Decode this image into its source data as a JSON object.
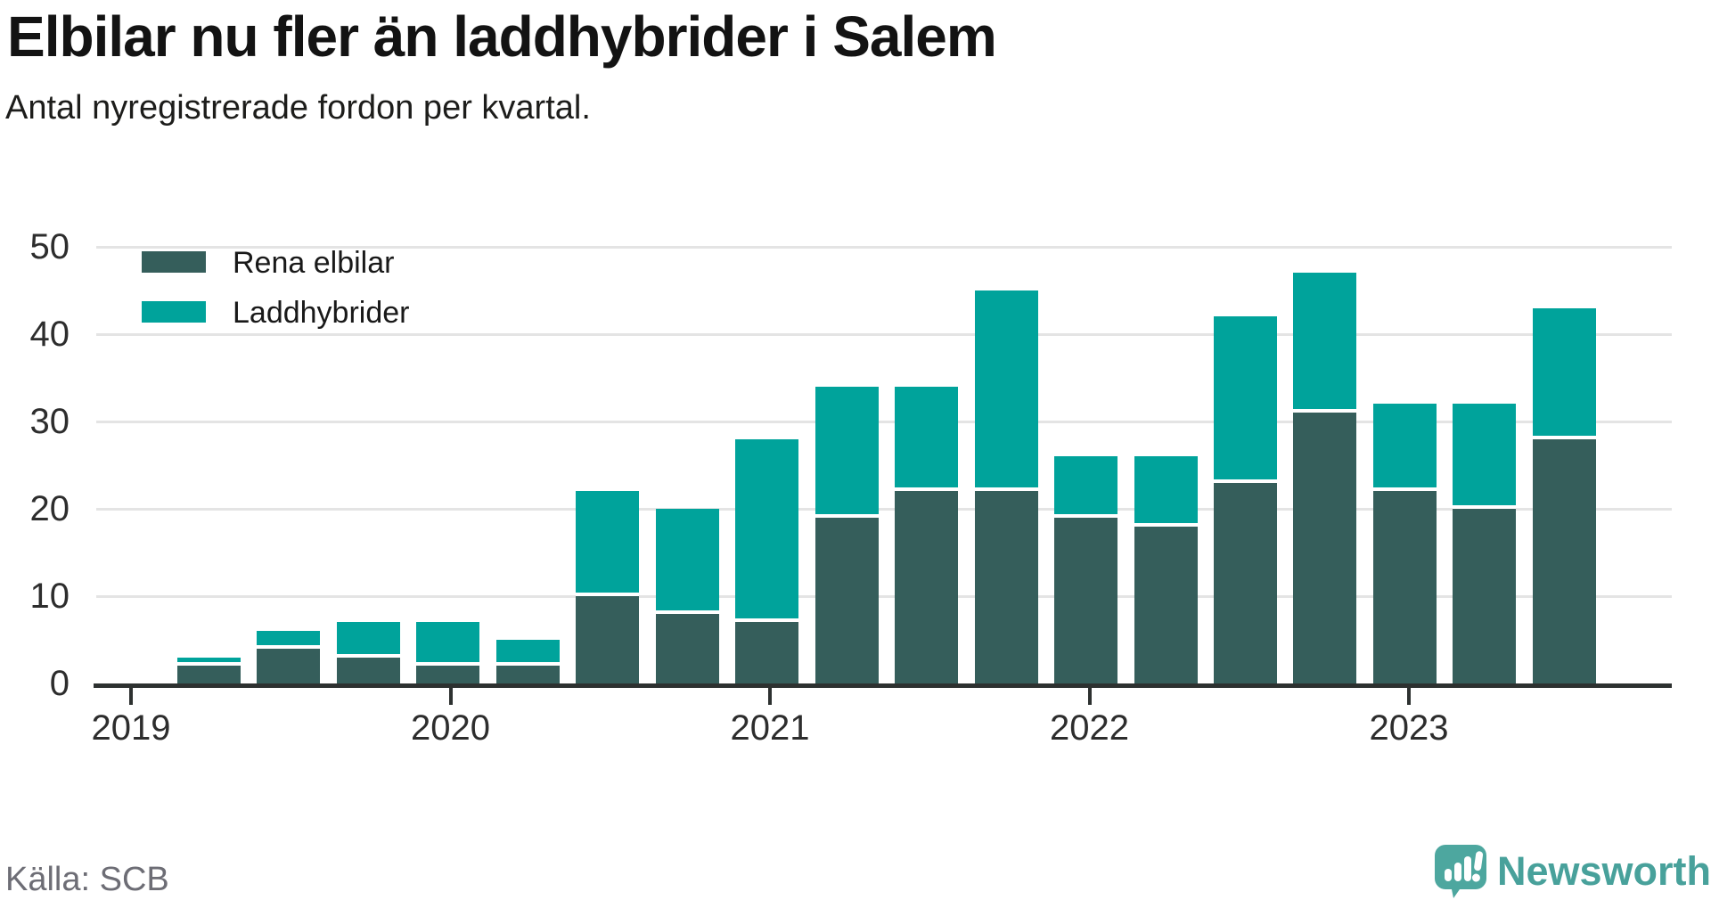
{
  "title": "Elbilar nu fler än laddhybrider i Salem",
  "subtitle": "Antal nyregistrerade fordon per kvartal.",
  "source": "Källa: SCB",
  "logo": {
    "text": "Newsworthy",
    "icon": "speech-bubble-bar-chart-icon",
    "color": "#48a19b",
    "icon_color": "#4da79f"
  },
  "legend": {
    "items": [
      {
        "label": "Rena elbilar",
        "color": "#355e5b"
      },
      {
        "label": "Laddhybrider",
        "color": "#00a39b"
      }
    ]
  },
  "colors": {
    "elbilar": "#355e5b",
    "laddhybrider": "#00a39b",
    "gridline": "#e4e4e4",
    "axis": "#2d3130",
    "tick_text": "#2d2d2d",
    "title_text": "#131313",
    "source_text": "#6d6d75"
  },
  "chart_data": {
    "type": "bar",
    "stacked": true,
    "title": "Elbilar nu fler än laddhybrider i Salem",
    "subtitle": "Antal nyregistrerade fordon per kvartal.",
    "categories": [
      "2019 Q1",
      "2019 Q2",
      "2019 Q3",
      "2019 Q4",
      "2020 Q1",
      "2020 Q2",
      "2020 Q3",
      "2020 Q4",
      "2021 Q1",
      "2021 Q2",
      "2021 Q3",
      "2021 Q4",
      "2022 Q1",
      "2022 Q2",
      "2022 Q3",
      "2022 Q4",
      "2023 Q1",
      "2023 Q2"
    ],
    "series": [
      {
        "name": "Rena elbilar",
        "color": "#355e5b",
        "values": [
          2,
          4,
          3,
          2,
          2,
          10,
          8,
          7,
          19,
          22,
          22,
          19,
          18,
          23,
          31,
          22,
          20,
          28
        ]
      },
      {
        "name": "Laddhybrider",
        "color": "#00a39b",
        "values": [
          1,
          2,
          4,
          5,
          3,
          12,
          12,
          21,
          15,
          12,
          23,
          7,
          8,
          19,
          16,
          10,
          12,
          15
        ]
      }
    ],
    "totals": [
      3,
      6,
      7,
      7,
      5,
      22,
      20,
      28,
      34,
      34,
      45,
      26,
      26,
      42,
      47,
      32,
      32,
      43
    ],
    "x_year_ticks": [
      "2019",
      "2020",
      "2021",
      "2022",
      "2023"
    ],
    "y_ticks": [
      0,
      10,
      20,
      30,
      40,
      50
    ],
    "ylim": [
      0,
      50
    ],
    "grid": "horizontal",
    "legend_position": "top-left"
  }
}
